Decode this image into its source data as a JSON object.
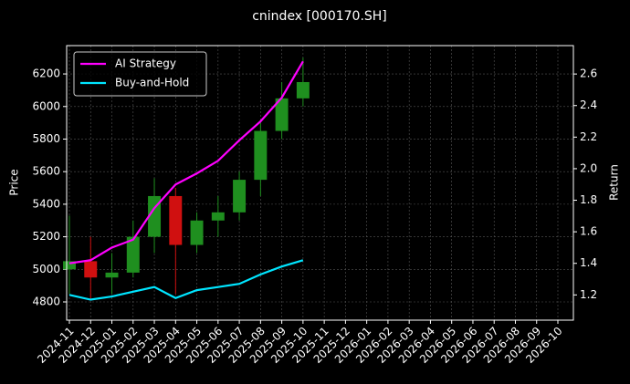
{
  "chart_data": {
    "type": "candlestick",
    "title": "cnindex [000170.SH]",
    "ylabel": "Price",
    "y2label": "Return",
    "categories": [
      "2024-11",
      "2024-12",
      "2025-01",
      "2025-02",
      "2025-03",
      "2025-04",
      "2025-05",
      "2025-06",
      "2025-07",
      "2025-08",
      "2025-09",
      "2025-10",
      "2025-11",
      "2025-12",
      "2026-01",
      "2026-02",
      "2026-03",
      "2026-04",
      "2026-05",
      "2026-06",
      "2026-07",
      "2026-08",
      "2026-09",
      "2026-10"
    ],
    "open": [
      5000,
      5050,
      4950,
      4980,
      5200,
      5450,
      5150,
      5300,
      5350,
      5550,
      5850,
      6050,
      null,
      null,
      null,
      null,
      null,
      null,
      null,
      null,
      null,
      null,
      null,
      null
    ],
    "high": [
      5330,
      5200,
      5100,
      5300,
      5560,
      5500,
      5350,
      5450,
      5600,
      5900,
      6150,
      6300,
      null,
      null,
      null,
      null,
      null,
      null,
      null,
      null,
      null,
      null,
      null,
      null
    ],
    "low": [
      4850,
      4820,
      4850,
      4950,
      5100,
      4850,
      5100,
      5200,
      5300,
      5450,
      5800,
      6000,
      null,
      null,
      null,
      null,
      null,
      null,
      null,
      null,
      null,
      null,
      null,
      null
    ],
    "close": [
      5050,
      4950,
      4980,
      5200,
      5450,
      5150,
      5300,
      5350,
      5550,
      5850,
      6050,
      6150,
      null,
      null,
      null,
      null,
      null,
      null,
      null,
      null,
      null,
      null,
      null,
      null
    ],
    "up_color": "#1f8f1f",
    "down_color": "#d01010",
    "ylim": [
      4688,
      6374
    ],
    "yticks": [
      4800,
      5000,
      5200,
      5400,
      5600,
      5800,
      6000,
      6200
    ],
    "y2lim": [
      1.04,
      2.78
    ],
    "y2ticks": [
      1.2,
      1.4,
      1.6,
      1.8,
      {
        "value": 2.0,
        "label": "2.0"
      },
      2.2,
      2.4,
      2.6
    ],
    "series": [
      {
        "name": "AI Strategy",
        "color": "#ff00ff",
        "axis": "y2",
        "values": [
          1.4,
          1.42,
          1.5,
          1.55,
          1.75,
          1.9,
          1.97,
          2.05,
          2.18,
          2.3,
          2.45,
          2.68,
          null,
          null,
          null,
          null,
          null,
          null,
          null,
          null,
          null,
          null,
          null,
          null
        ]
      },
      {
        "name": "Buy-and-Hold",
        "color": "#00e5ff",
        "axis": "y2",
        "values": [
          1.2,
          1.17,
          1.19,
          1.22,
          1.25,
          1.18,
          1.23,
          1.25,
          1.27,
          1.33,
          1.38,
          1.42,
          null,
          null,
          null,
          null,
          null,
          null,
          null,
          null,
          null,
          null,
          null,
          null
        ]
      }
    ],
    "grid": true,
    "legend": "upper-left"
  }
}
